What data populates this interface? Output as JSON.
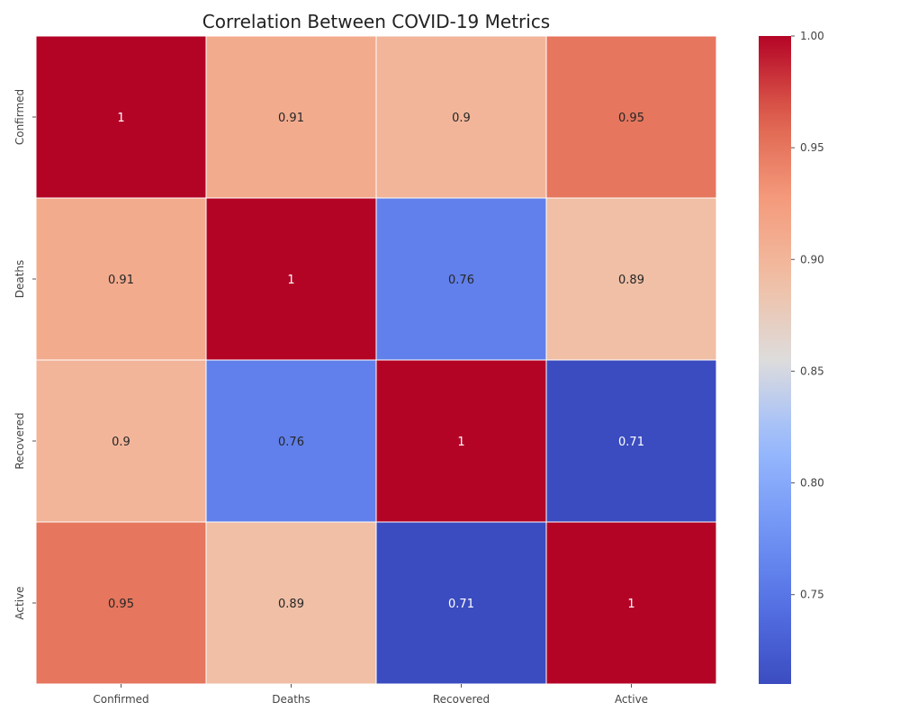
{
  "chart_data": {
    "type": "heatmap",
    "title": "Correlation Between COVID-19 Metrics",
    "x_categories": [
      "Confirmed",
      "Deaths",
      "Recovered",
      "Active"
    ],
    "y_categories": [
      "Confirmed",
      "Deaths",
      "Recovered",
      "Active"
    ],
    "matrix": [
      [
        1,
        0.91,
        0.9,
        0.95
      ],
      [
        0.91,
        1,
        0.76,
        0.89
      ],
      [
        0.9,
        0.76,
        1,
        0.71
      ],
      [
        0.95,
        0.89,
        0.71,
        1
      ]
    ],
    "annotations": [
      [
        "1",
        "0.91",
        "0.9",
        "0.95"
      ],
      [
        "0.91",
        "1",
        "0.76",
        "0.89"
      ],
      [
        "0.9",
        "0.76",
        "1",
        "0.71"
      ],
      [
        "0.95",
        "0.89",
        "0.71",
        "1"
      ]
    ],
    "colormap": "coolwarm",
    "vmin": 0.71,
    "vmax": 1.0,
    "colorbar_ticks": [
      "0.75",
      "0.80",
      "0.85",
      "0.90",
      "0.95",
      "1.00"
    ],
    "colorbar_tick_values": [
      0.75,
      0.8,
      0.85,
      0.9,
      0.95,
      1.0
    ],
    "colors": {
      "low": "#3b4cc0",
      "mid": "#dddcdc",
      "high": "#b40426",
      "cell_border": "#ffffff",
      "annotation_dark": "#262626",
      "annotation_light": "#ffffff"
    }
  }
}
